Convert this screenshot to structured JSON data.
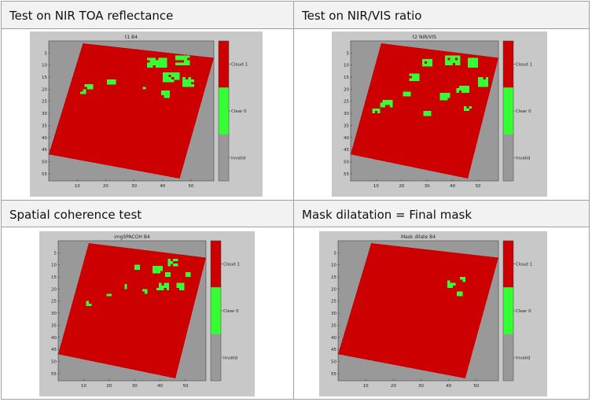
{
  "panels": [
    {
      "heading": "Test on NIR TOA reflectance",
      "plot_title": "t1 B4",
      "variant": 0
    },
    {
      "heading": "Test on NIR/VIS ratio",
      "plot_title": "t2 NIR/VIS",
      "variant": 1
    },
    {
      "heading": "Spatial coherence test",
      "plot_title": "imgSPACOH B4",
      "variant": 2
    },
    {
      "heading": "Mask dilatation = Final mask",
      "plot_title": "Mask dilate  B4",
      "variant": 3
    }
  ],
  "axes": {
    "y_ticks": [
      "5",
      "10",
      "15",
      "20",
      "25",
      "30",
      "35",
      "40",
      "45",
      "50",
      "55"
    ],
    "x_ticks": [
      "10",
      "20",
      "30",
      "40",
      "50"
    ]
  },
  "colorbar": {
    "labels": [
      "Cloud 1",
      "Clear 0",
      "Invalid"
    ],
    "colors": {
      "cloud": "#cc0000",
      "clear": "#33ff33",
      "invalid": "#999999"
    }
  },
  "colors": {
    "figure_bg": "#c8c8c8",
    "cloud": "#cc0000",
    "clear": "#33ff33",
    "invalid": "#999999"
  }
}
